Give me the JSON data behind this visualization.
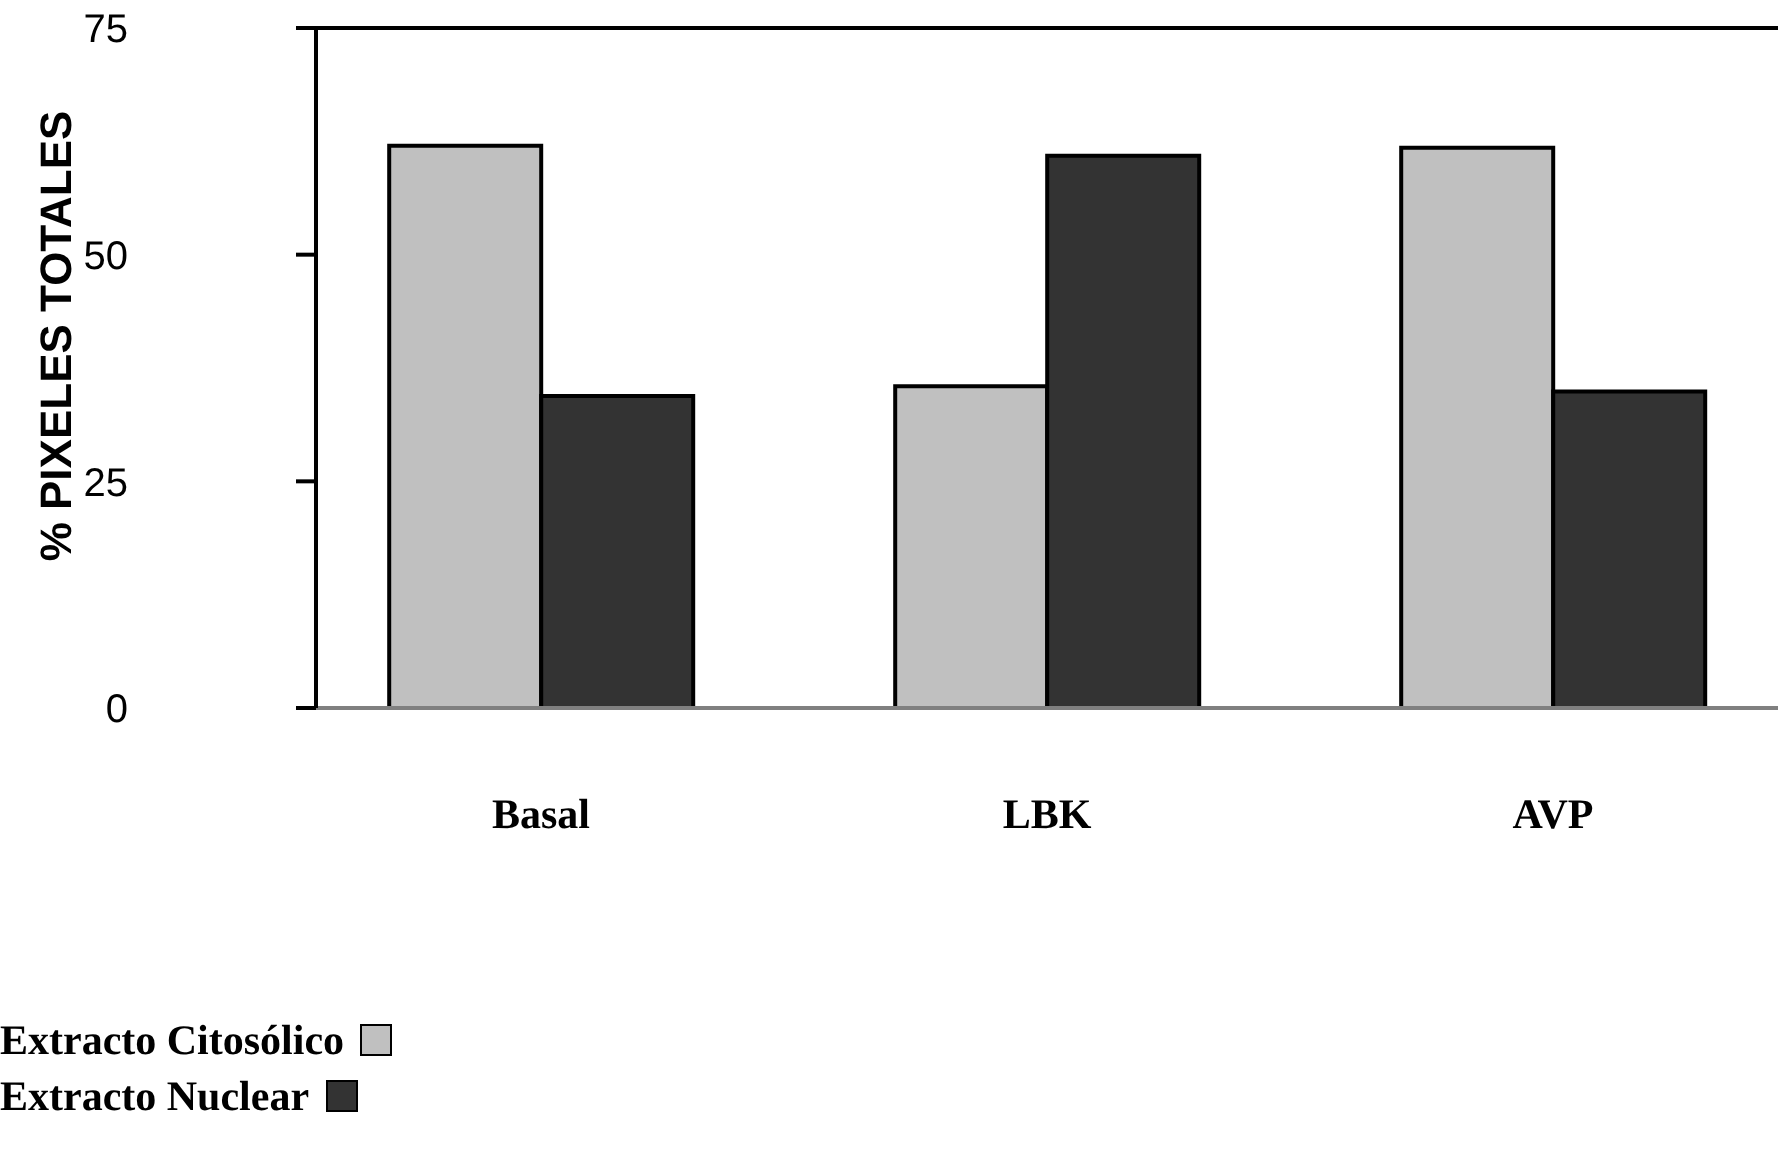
{
  "chart_data": {
    "type": "bar",
    "ylabel": "% PIXELES TOTALES",
    "categories": [
      "Basal",
      "LBK",
      "AVP"
    ],
    "series": [
      {
        "name": "Extracto Citosólico",
        "color": "#c0c0c0",
        "values": [
          62.0,
          35.5,
          61.8
        ]
      },
      {
        "name": "Extracto Nuclear",
        "color": "#333333",
        "values": [
          34.4,
          60.9,
          34.9
        ]
      }
    ],
    "ylim": [
      0,
      75
    ],
    "yticks": [
      0,
      25,
      50,
      75
    ],
    "grid": false,
    "legend": "bottom left"
  }
}
